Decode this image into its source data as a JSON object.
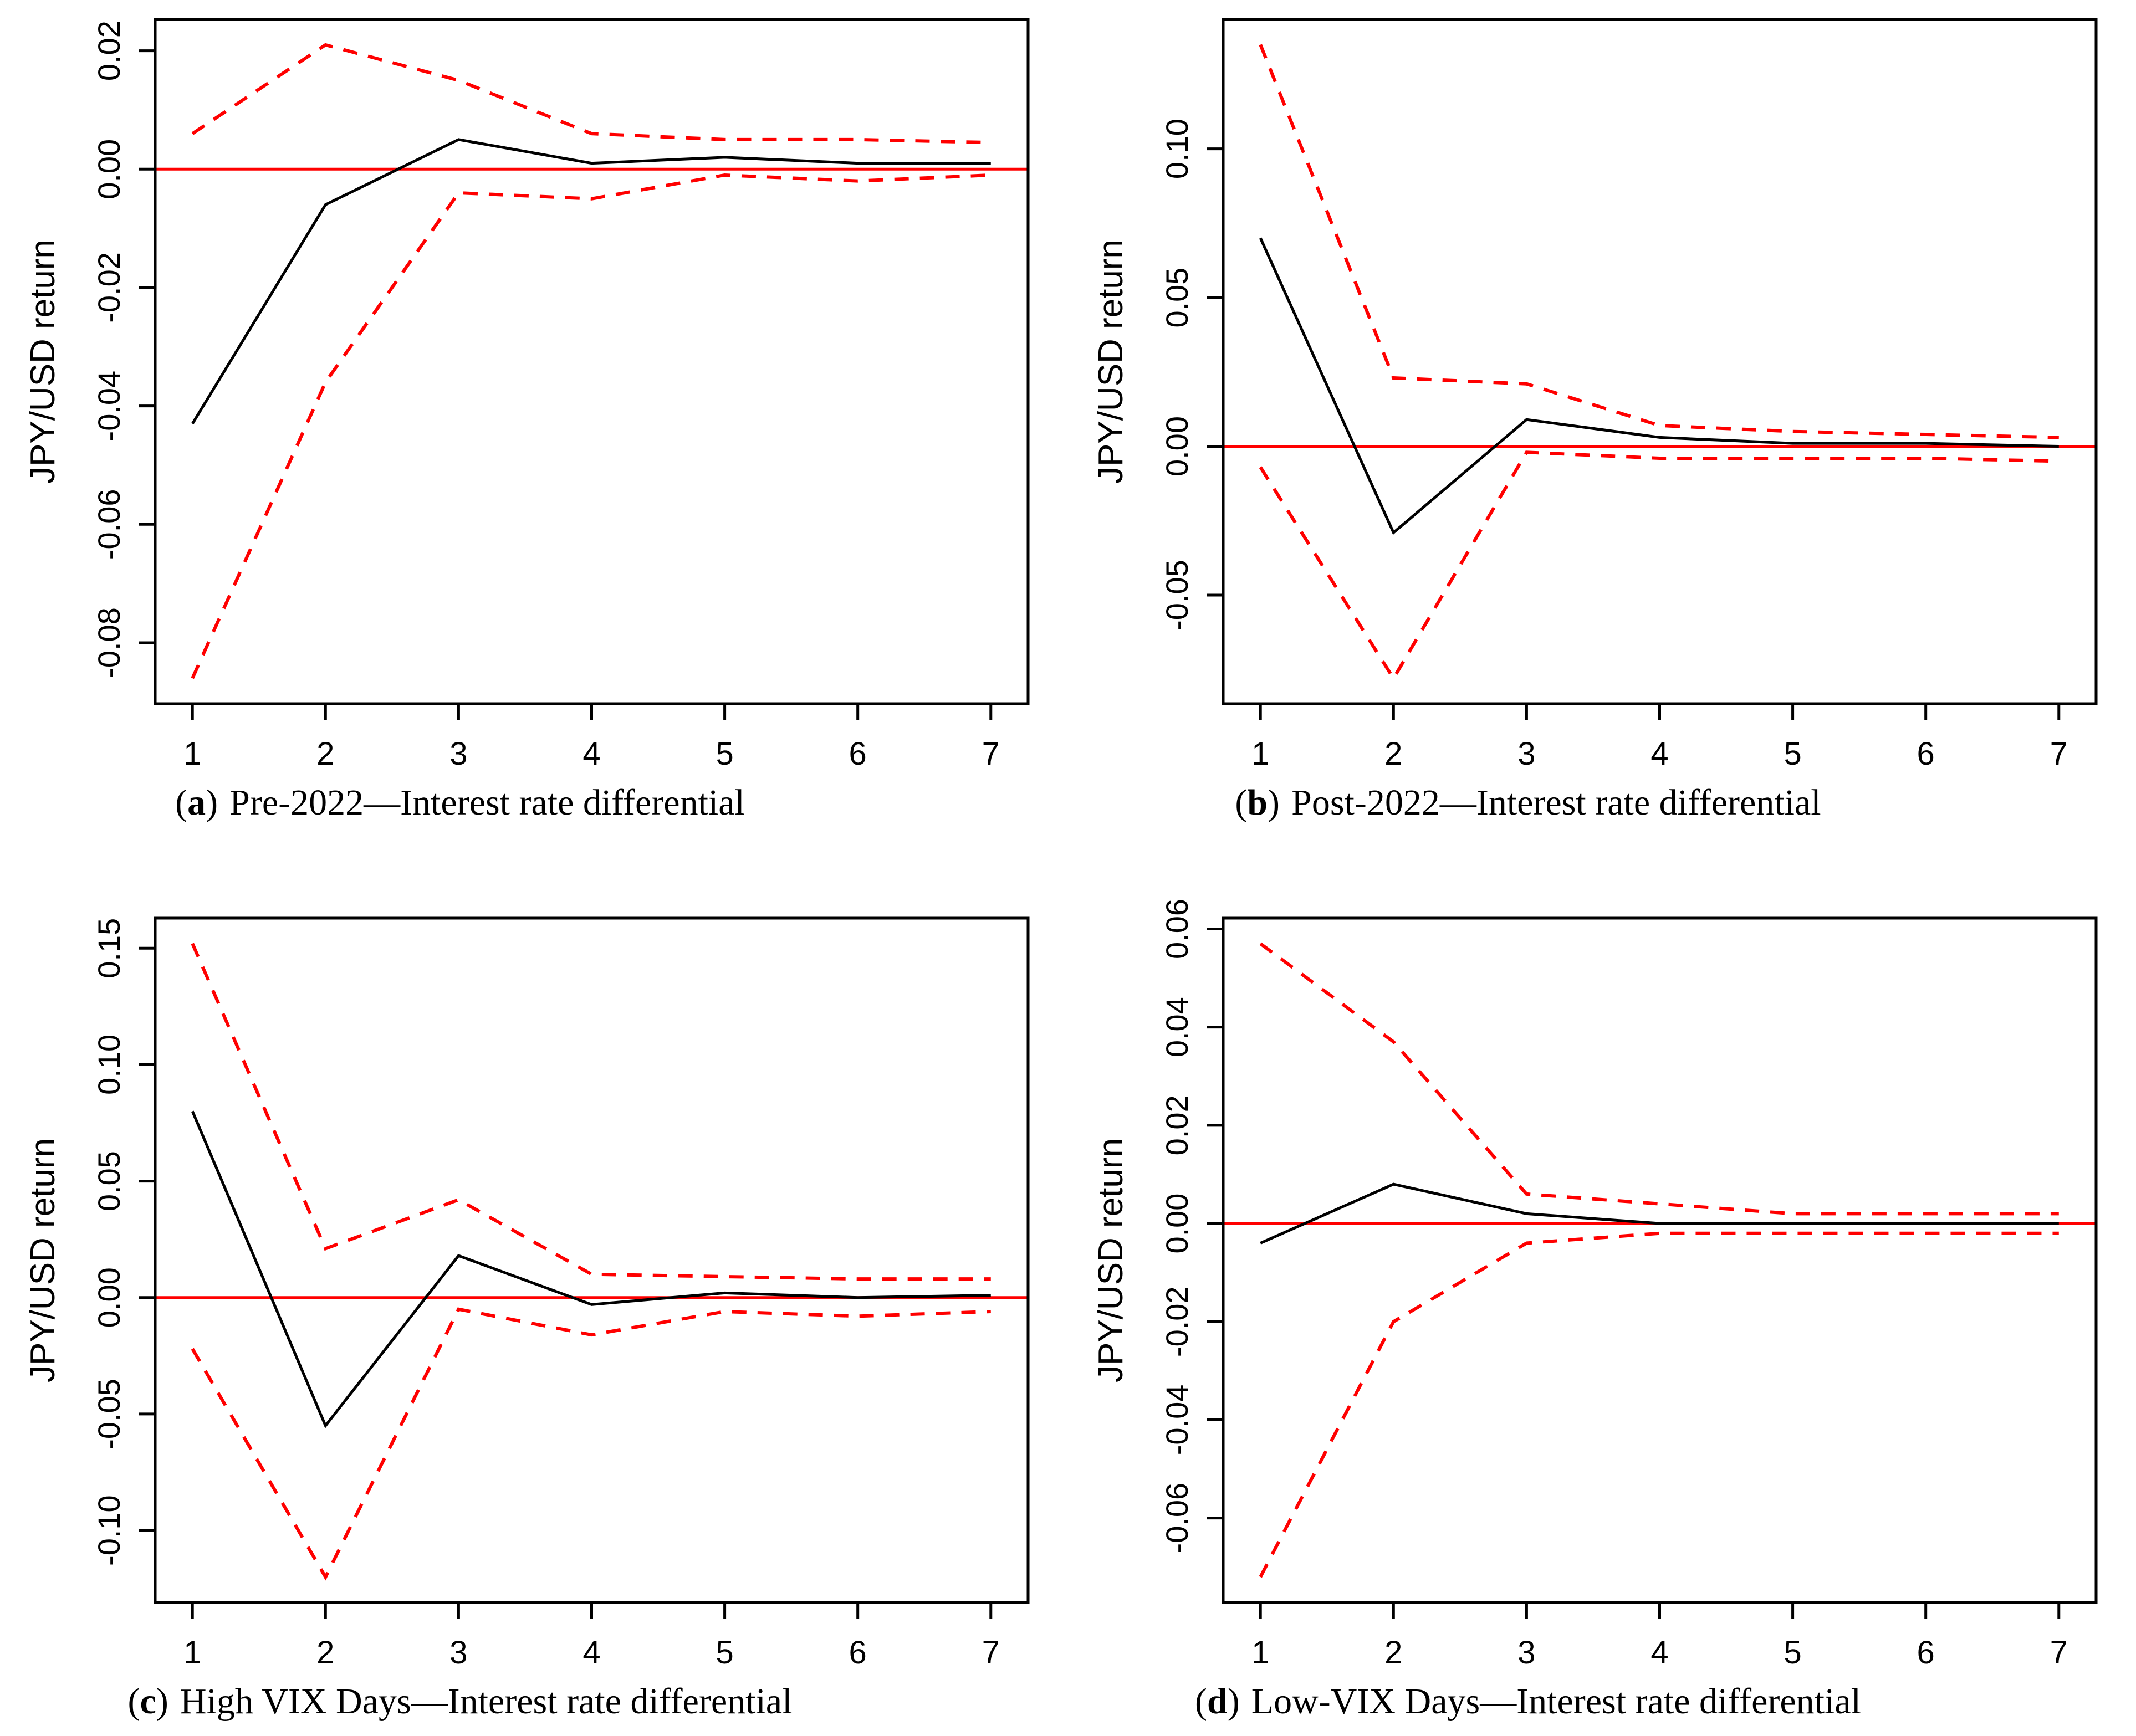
{
  "figure": {
    "background": "#ffffff",
    "band_color": "#ff0000",
    "zero_line_color": "#ff0000",
    "irf_color": "#000000"
  },
  "chart_data": [
    {
      "id": "a",
      "type": "line",
      "x": [
        1,
        2,
        3,
        4,
        5,
        6,
        7
      ],
      "xticks": [
        "1",
        "2",
        "3",
        "4",
        "5",
        "6",
        "7"
      ],
      "xlim": [
        0.72,
        7.28
      ],
      "ylabel": "JPY/USD return",
      "ylim": [
        -0.0903,
        0.0253
      ],
      "yticks": [
        0.02,
        0.0,
        -0.02,
        -0.04,
        -0.06,
        -0.08
      ],
      "ytick_labels": [
        "0.02",
        "0.00",
        "-0.02",
        "-0.04",
        "-0.06",
        "-0.08"
      ],
      "zero_line": 0,
      "grid": false,
      "legend": "none",
      "series": [
        {
          "name": "impulse-response",
          "style": "solid",
          "color": "#000000",
          "values": [
            -0.043,
            -0.006,
            0.005,
            0.001,
            0.002,
            0.001,
            0.001
          ]
        },
        {
          "name": "upper-confidence-band",
          "style": "dashed",
          "color": "#ff0000",
          "values": [
            0.006,
            0.021,
            0.015,
            0.006,
            0.005,
            0.005,
            0.0045
          ]
        },
        {
          "name": "lower-confidence-band",
          "style": "dashed",
          "color": "#ff0000",
          "values": [
            -0.086,
            -0.036,
            -0.004,
            -0.005,
            -0.001,
            -0.002,
            -0.001
          ]
        }
      ],
      "caption": {
        "open": "(",
        "letter": "a",
        "close": ")",
        "text": "Pre-2022—Interest rate differential"
      }
    },
    {
      "id": "b",
      "type": "line",
      "x": [
        1,
        2,
        3,
        4,
        5,
        6,
        7
      ],
      "xticks": [
        "1",
        "2",
        "3",
        "4",
        "5",
        "6",
        "7"
      ],
      "xlim": [
        0.72,
        7.28
      ],
      "ylabel": "JPY/USD return",
      "ylim": [
        -0.0865,
        0.1435
      ],
      "yticks": [
        0.1,
        0.05,
        0.0,
        -0.05
      ],
      "ytick_labels": [
        "0.10",
        "0.05",
        "0.00",
        "-0.05"
      ],
      "zero_line": 0,
      "grid": false,
      "legend": "none",
      "series": [
        {
          "name": "impulse-response",
          "style": "solid",
          "color": "#000000",
          "values": [
            0.07,
            -0.029,
            0.009,
            0.003,
            0.001,
            0.001,
            0.0
          ]
        },
        {
          "name": "upper-confidence-band",
          "style": "dashed",
          "color": "#ff0000",
          "values": [
            0.135,
            0.023,
            0.021,
            0.007,
            0.005,
            0.004,
            0.003
          ]
        },
        {
          "name": "lower-confidence-band",
          "style": "dashed",
          "color": "#ff0000",
          "values": [
            -0.007,
            -0.078,
            -0.002,
            -0.004,
            -0.004,
            -0.004,
            -0.005
          ]
        }
      ],
      "caption": {
        "open": "(",
        "letter": "b",
        "close": ")",
        "text": "Post-2022—Interest rate differential"
      }
    },
    {
      "id": "c",
      "type": "line",
      "x": [
        1,
        2,
        3,
        4,
        5,
        6,
        7
      ],
      "xticks": [
        "1",
        "2",
        "3",
        "4",
        "5",
        "6",
        "7"
      ],
      "xlim": [
        0.72,
        7.28
      ],
      "ylabel": "JPY/USD return",
      "ylim": [
        -0.1309,
        0.1629
      ],
      "yticks": [
        0.15,
        0.1,
        0.05,
        0.0,
        -0.05,
        -0.1
      ],
      "ytick_labels": [
        "0.15",
        "0.10",
        "0.05",
        "0.00",
        "-0.05",
        "-0.10"
      ],
      "zero_line": 0,
      "grid": false,
      "legend": "none",
      "series": [
        {
          "name": "impulse-response",
          "style": "solid",
          "color": "#000000",
          "values": [
            0.08,
            -0.055,
            0.018,
            -0.003,
            0.002,
            0.0,
            0.001
          ]
        },
        {
          "name": "upper-confidence-band",
          "style": "dashed",
          "color": "#ff0000",
          "values": [
            0.152,
            0.021,
            0.042,
            0.01,
            0.009,
            0.008,
            0.008
          ]
        },
        {
          "name": "lower-confidence-band",
          "style": "dashed",
          "color": "#ff0000",
          "values": [
            -0.022,
            -0.12,
            -0.005,
            -0.016,
            -0.006,
            -0.008,
            -0.006
          ]
        }
      ],
      "caption": {
        "open": "(",
        "letter": "c",
        "close": ")",
        "text": "High VIX Days—Interest rate differential"
      }
    },
    {
      "id": "d",
      "type": "line",
      "x": [
        1,
        2,
        3,
        4,
        5,
        6,
        7
      ],
      "xticks": [
        "1",
        "2",
        "3",
        "4",
        "5",
        "6",
        "7"
      ],
      "xlim": [
        0.72,
        7.28
      ],
      "ylabel": "JPY/USD return",
      "ylim": [
        -0.0772,
        0.0622
      ],
      "yticks": [
        0.06,
        0.04,
        0.02,
        0.0,
        -0.02,
        -0.04,
        -0.06
      ],
      "ytick_labels": [
        "0.06",
        "0.04",
        "0.02",
        "0.00",
        "-0.02",
        "-0.04",
        "-0.06"
      ],
      "zero_line": 0,
      "grid": false,
      "legend": "none",
      "series": [
        {
          "name": "impulse-response",
          "style": "solid",
          "color": "#000000",
          "values": [
            -0.004,
            0.008,
            0.002,
            0.0,
            0.0,
            0.0,
            0.0
          ]
        },
        {
          "name": "upper-confidence-band",
          "style": "dashed",
          "color": "#ff0000",
          "values": [
            0.057,
            0.037,
            0.006,
            0.004,
            0.002,
            0.002,
            0.002
          ]
        },
        {
          "name": "lower-confidence-band",
          "style": "dashed",
          "color": "#ff0000",
          "values": [
            -0.072,
            -0.02,
            -0.004,
            -0.002,
            -0.002,
            -0.002,
            -0.002
          ]
        }
      ],
      "caption": {
        "open": "(",
        "letter": "d",
        "close": ")",
        "text": "Low-VIX Days—Interest rate differential"
      }
    }
  ]
}
